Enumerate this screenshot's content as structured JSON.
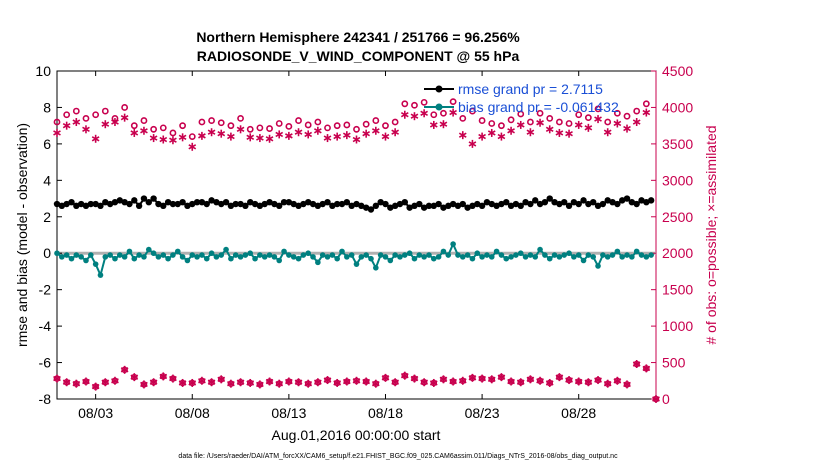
{
  "chart_data": {
    "type": "line",
    "title_line1": "Northern Hemisphere 242341 / 251766 = 96.256%",
    "title_line2": "RADIOSONDE_V_WIND_COMPONENT @ 55 hPa",
    "xlabel": "Aug.01,2016 00:00:00 start",
    "ylabel_left": "rmse and bias (model - observation)",
    "ylabel_right": "# of obs: o=possible; ×=assimilated",
    "footer": "data file: /Users/raeder/DAI/ATM_forcXX/CAM6_setup/f.e21.FHIST_BGC.f09_025.CAM6assim.011/Diags_NTrS_2016-08/obs_diag_output.nc",
    "x_tick_labels": [
      "08/03",
      "08/08",
      "08/13",
      "08/18",
      "08/23",
      "08/28"
    ],
    "x_tick_values": [
      3,
      8,
      13,
      18,
      23,
      28
    ],
    "xlim": [
      1,
      32
    ],
    "ylim_left": [
      -8,
      10
    ],
    "y_ticks_left": [
      "-8",
      "-6",
      "-4",
      "-2",
      "0",
      "2",
      "4",
      "6",
      "8",
      "10"
    ],
    "ylim_right": [
      0,
      4500
    ],
    "y_ticks_right": [
      "0",
      "500",
      "1000",
      "1500",
      "2000",
      "2500",
      "3000",
      "3500",
      "4000",
      "4500"
    ],
    "legend": [
      {
        "label": "rmse grand pr = 2.7115",
        "color": "#000000"
      },
      {
        "label": "bias grand pr = -0.061432",
        "color": "#008080"
      }
    ],
    "colors": {
      "rmse": "#000000",
      "bias": "#008080",
      "obs": "#c8004e",
      "zero": "#b0b0b0"
    },
    "series": [
      {
        "name": "rmse",
        "x": [
          1,
          1.25,
          1.5,
          1.75,
          2,
          2.25,
          2.5,
          2.75,
          3,
          3.25,
          3.5,
          3.75,
          4,
          4.25,
          4.5,
          4.75,
          5,
          5.25,
          5.5,
          5.75,
          6,
          6.25,
          6.5,
          6.75,
          7,
          7.25,
          7.5,
          7.75,
          8,
          8.25,
          8.5,
          8.75,
          9,
          9.25,
          9.5,
          9.75,
          10,
          10.25,
          10.5,
          10.75,
          11,
          11.25,
          11.5,
          11.75,
          12,
          12.25,
          12.5,
          12.75,
          13,
          13.25,
          13.5,
          13.75,
          14,
          14.25,
          14.5,
          14.75,
          15,
          15.25,
          15.5,
          15.75,
          16,
          16.25,
          16.5,
          16.75,
          17,
          17.25,
          17.5,
          17.75,
          18,
          18.25,
          18.5,
          18.75,
          19,
          19.25,
          19.5,
          19.75,
          20,
          20.25,
          20.5,
          20.75,
          21,
          21.25,
          21.5,
          21.75,
          22,
          22.25,
          22.5,
          22.75,
          23,
          23.25,
          23.5,
          23.75,
          24,
          24.25,
          24.5,
          24.75,
          25,
          25.25,
          25.5,
          25.75,
          26,
          26.25,
          26.5,
          26.75,
          27,
          27.25,
          27.5,
          27.75,
          28,
          28.25,
          28.5,
          28.75,
          29,
          29.25,
          29.5,
          29.75,
          30,
          30.25,
          30.5,
          30.75,
          31,
          31.25,
          31.5,
          31.75
        ],
        "values": [
          2.7,
          2.6,
          2.7,
          2.8,
          2.6,
          2.7,
          2.6,
          2.7,
          2.7,
          2.6,
          2.8,
          2.7,
          2.8,
          2.9,
          2.8,
          2.7,
          2.9,
          2.6,
          3.0,
          2.8,
          3.0,
          2.7,
          2.6,
          2.8,
          2.7,
          2.7,
          2.8,
          2.6,
          2.7,
          2.8,
          2.8,
          2.7,
          2.9,
          2.8,
          2.7,
          2.8,
          2.6,
          2.7,
          2.7,
          2.6,
          2.8,
          2.7,
          2.6,
          2.7,
          2.8,
          2.7,
          2.6,
          2.8,
          2.8,
          2.7,
          2.6,
          2.7,
          2.8,
          2.7,
          2.6,
          2.7,
          2.8,
          2.6,
          2.7,
          2.7,
          2.8,
          2.6,
          2.7,
          2.6,
          2.5,
          2.4,
          2.6,
          2.8,
          2.7,
          2.5,
          2.6,
          2.7,
          2.8,
          2.5,
          2.6,
          2.7,
          2.5,
          2.6,
          2.6,
          2.7,
          2.5,
          2.6,
          2.7,
          2.6,
          2.7,
          2.5,
          2.6,
          2.7,
          2.6,
          2.8,
          2.7,
          2.6,
          2.7,
          2.8,
          2.6,
          2.7,
          2.6,
          2.8,
          2.7,
          2.9,
          2.7,
          2.8,
          3.0,
          2.8,
          2.7,
          2.8,
          2.6,
          2.8,
          2.7,
          2.9,
          2.7,
          2.8,
          2.6,
          2.7,
          2.9,
          2.8,
          2.7,
          2.9,
          3.0,
          2.8,
          2.7,
          2.9,
          2.8,
          2.9
        ]
      },
      {
        "name": "bias",
        "x": [
          1,
          1.25,
          1.5,
          1.75,
          2,
          2.25,
          2.5,
          2.75,
          3,
          3.25,
          3.5,
          3.75,
          4,
          4.25,
          4.5,
          4.75,
          5,
          5.25,
          5.5,
          5.75,
          6,
          6.25,
          6.5,
          6.75,
          7,
          7.25,
          7.5,
          7.75,
          8,
          8.25,
          8.5,
          8.75,
          9,
          9.25,
          9.5,
          9.75,
          10,
          10.25,
          10.5,
          10.75,
          11,
          11.25,
          11.5,
          11.75,
          12,
          12.25,
          12.5,
          12.75,
          13,
          13.25,
          13.5,
          13.75,
          14,
          14.25,
          14.5,
          14.75,
          15,
          15.25,
          15.5,
          15.75,
          16,
          16.25,
          16.5,
          16.75,
          17,
          17.25,
          17.5,
          17.75,
          18,
          18.25,
          18.5,
          18.75,
          19,
          19.25,
          19.5,
          19.75,
          20,
          20.25,
          20.5,
          20.75,
          21,
          21.25,
          21.5,
          21.75,
          22,
          22.25,
          22.5,
          22.75,
          23,
          23.25,
          23.5,
          23.75,
          24,
          24.25,
          24.5,
          24.75,
          25,
          25.25,
          25.5,
          25.75,
          26,
          26.25,
          26.5,
          26.75,
          27,
          27.25,
          27.5,
          27.75,
          28,
          28.25,
          28.5,
          28.75,
          29,
          29.25,
          29.5,
          29.75,
          30,
          30.25,
          30.5,
          30.75,
          31,
          31.25,
          31.5,
          31.75
        ],
        "values": [
          0.0,
          -0.2,
          -0.1,
          -0.3,
          -0.1,
          -0.2,
          -0.4,
          -0.1,
          -0.6,
          -1.2,
          -0.2,
          -0.1,
          -0.3,
          -0.1,
          -0.2,
          0.1,
          -0.3,
          -0.1,
          -0.2,
          0.2,
          0.0,
          -0.2,
          -0.1,
          -0.3,
          -0.1,
          0.1,
          -0.2,
          -0.4,
          -0.1,
          -0.2,
          -0.1,
          -0.3,
          0.0,
          -0.2,
          -0.1,
          0.2,
          -0.3,
          -0.1,
          -0.2,
          -0.1,
          0.0,
          -0.3,
          -0.1,
          -0.2,
          -0.1,
          -0.2,
          -0.4,
          0.1,
          -0.1,
          -0.2,
          -0.3,
          -0.1,
          0.0,
          -0.2,
          -0.5,
          -0.1,
          -0.2,
          -0.1,
          -0.3,
          0.1,
          -0.2,
          -0.1,
          -0.6,
          -0.2,
          -0.1,
          -0.3,
          -0.8,
          -0.1,
          -0.2,
          -0.4,
          -0.1,
          -0.2,
          -0.1,
          0.0,
          -0.3,
          -0.1,
          -0.2,
          -0.1,
          -0.3,
          -0.2,
          0.1,
          -0.1,
          0.5,
          -0.1,
          -0.2,
          -0.1,
          -0.3,
          0.0,
          -0.2,
          -0.1,
          -0.2,
          0.1,
          -0.1,
          -0.3,
          -0.2,
          -0.1,
          0.0,
          -0.2,
          -0.1,
          -0.2,
          0.2,
          -0.1,
          -0.3,
          -0.1,
          -0.2,
          -0.1,
          0.0,
          -0.2,
          -0.1,
          -0.4,
          -0.1,
          -0.2,
          -0.7,
          -0.1,
          -0.2,
          -0.1,
          0.1,
          -0.2,
          -0.1,
          -0.2,
          0.1,
          -0.1,
          -0.2,
          -0.1
        ]
      },
      {
        "name": "obs_possible",
        "x": [
          1,
          1.5,
          2,
          2.5,
          3,
          3.5,
          4,
          4.5,
          5,
          5.5,
          6,
          6.5,
          7,
          7.5,
          8,
          8.5,
          9,
          9.5,
          10,
          10.5,
          11,
          11.5,
          12,
          12.5,
          13,
          13.5,
          14,
          14.5,
          15,
          15.5,
          16,
          16.5,
          17,
          17.5,
          18,
          18.5,
          19,
          19.5,
          20,
          20.5,
          21,
          21.5,
          22,
          22.5,
          23,
          23.5,
          24,
          24.5,
          25,
          25.5,
          26,
          26.5,
          27,
          27.5,
          28,
          28.5,
          29,
          29.5,
          30,
          30.5,
          31,
          31.5
        ],
        "values": [
          3800,
          3900,
          3950,
          3850,
          3900,
          3950,
          3850,
          4000,
          3750,
          3820,
          3700,
          3720,
          3650,
          3750,
          3600,
          3800,
          3820,
          3790,
          3750,
          3850,
          3700,
          3720,
          3710,
          3780,
          3740,
          3820,
          3760,
          3800,
          3720,
          3750,
          3760,
          3700,
          3770,
          3820,
          3750,
          3800,
          4050,
          4030,
          4070,
          3900,
          3920,
          4080,
          3850,
          3950,
          3820,
          3780,
          3750,
          3830,
          3910,
          3800,
          3920,
          3850,
          3800,
          3780,
          3900,
          3860,
          3980,
          3800,
          3920,
          3880,
          3950,
          4050
        ]
      },
      {
        "name": "obs_assimilated",
        "x": [
          1,
          1.5,
          2,
          2.5,
          3,
          3.5,
          4,
          4.5,
          5,
          5.5,
          6,
          6.5,
          7,
          7.5,
          8,
          8.5,
          9,
          9.5,
          10,
          10.5,
          11,
          11.5,
          12,
          12.5,
          13,
          13.5,
          14,
          14.5,
          15,
          15.5,
          16,
          16.5,
          17,
          17.5,
          18,
          18.5,
          19,
          19.5,
          20,
          20.5,
          21,
          21.5,
          22,
          22.5,
          23,
          23.5,
          24,
          24.5,
          25,
          25.5,
          26,
          26.5,
          27,
          27.5,
          28,
          28.5,
          29,
          29.5,
          30,
          30.5,
          31,
          31.5
        ],
        "values": [
          3650,
          3750,
          3800,
          3700,
          3570,
          3770,
          3800,
          3860,
          3650,
          3680,
          3580,
          3560,
          3550,
          3590,
          3460,
          3610,
          3660,
          3640,
          3600,
          3700,
          3590,
          3580,
          3570,
          3630,
          3610,
          3660,
          3630,
          3680,
          3580,
          3600,
          3620,
          3560,
          3640,
          3680,
          3600,
          3660,
          3900,
          3880,
          3920,
          3760,
          3770,
          3930,
          3620,
          3500,
          3600,
          3650,
          3600,
          3680,
          3760,
          3660,
          3790,
          3700,
          3650,
          3640,
          3760,
          3720,
          3840,
          3660,
          3780,
          3710,
          3800,
          3930
        ]
      },
      {
        "name": "obs_low",
        "x": [
          1,
          1.5,
          2,
          2.5,
          3,
          3.5,
          4,
          4.5,
          5,
          5.5,
          6,
          6.5,
          7,
          7.5,
          8,
          8.5,
          9,
          9.5,
          10,
          10.5,
          11,
          11.5,
          12,
          12.5,
          13,
          13.5,
          14,
          14.5,
          15,
          15.5,
          16,
          16.5,
          17,
          17.5,
          18,
          18.5,
          19,
          19.5,
          20,
          20.5,
          21,
          21.5,
          22,
          22.5,
          23,
          23.5,
          24,
          24.5,
          25,
          25.5,
          26,
          26.5,
          27,
          27.5,
          28,
          28.5,
          29,
          29.5,
          30,
          30.5,
          31,
          31.5,
          32
        ],
        "values": [
          280,
          230,
          210,
          240,
          170,
          230,
          250,
          400,
          300,
          200,
          230,
          310,
          280,
          220,
          220,
          250,
          230,
          270,
          210,
          230,
          220,
          200,
          240,
          210,
          240,
          230,
          210,
          230,
          260,
          220,
          240,
          250,
          240,
          210,
          290,
          230,
          320,
          280,
          230,
          220,
          270,
          240,
          250,
          290,
          280,
          270,
          300,
          240,
          230,
          270,
          250,
          220,
          300,
          260,
          240,
          230,
          260,
          210,
          250,
          200,
          480,
          420,
          0
        ]
      }
    ]
  }
}
